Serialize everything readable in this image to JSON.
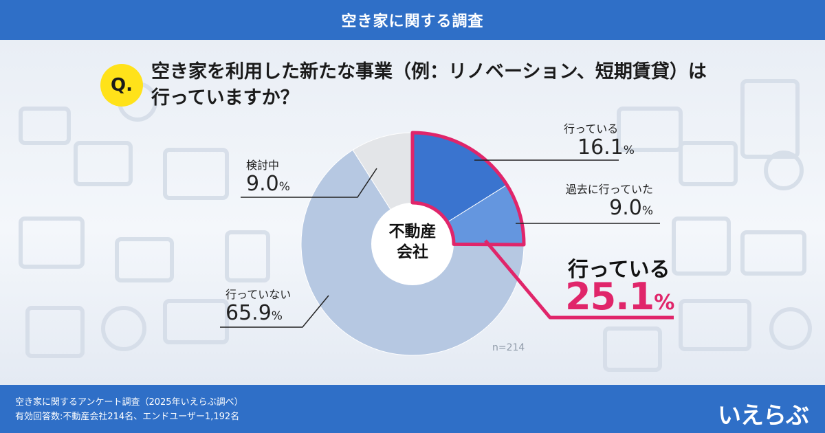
{
  "header": {
    "title": "空き家に関する調査"
  },
  "question": {
    "badge": "Q.",
    "line1": "空き家を利用した新たな事業（例：リノベーション、短期賃貸）は",
    "line2": "行っていますか？"
  },
  "chart_data": {
    "type": "pie",
    "center_label_line1": "不動産",
    "center_label_line2": "会社",
    "sample_size_label": "n=214",
    "slices": [
      {
        "label": "行っている",
        "value": 16.1,
        "display": "16.1",
        "color": "#3a74cf"
      },
      {
        "label": "過去に行っていた",
        "value": 9.0,
        "display": "9.0",
        "color": "#6496df"
      },
      {
        "label": "行っていない",
        "value": 65.9,
        "display": "65.9",
        "color": "#b6c8e2"
      },
      {
        "label": "検討中",
        "value": 9.0,
        "display": "9.0",
        "color": "#e3e5e8"
      }
    ],
    "unit": "%",
    "highlight": {
      "label": "行っている",
      "value": "25.1",
      "unit": "%",
      "color": "#e0256a"
    }
  },
  "footer": {
    "line1": "空き家に関するアンケート調査（2025年いえらぶ調べ）",
    "line2": "有効回答数:不動産会社214名、エンドユーザー1,192名",
    "logo": "いえらぶ"
  }
}
